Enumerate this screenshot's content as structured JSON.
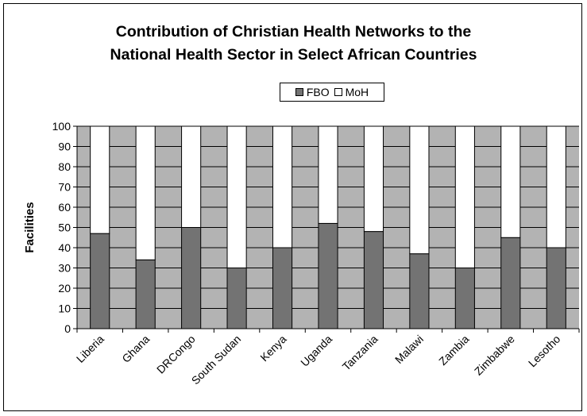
{
  "colors": {
    "plot_background": "#b3b3b3",
    "fbo": "#737373",
    "moh": "#ffffff",
    "axis": "#000000"
  },
  "chart_data": {
    "type": "bar",
    "stacked": true,
    "title": "Contribution of Christian Health Networks to the\nNational Health Sector in Select African Countries",
    "xlabel": "",
    "ylabel": "Facilities",
    "ylim": [
      0,
      100
    ],
    "yticks": [
      0,
      10,
      20,
      30,
      40,
      50,
      60,
      70,
      80,
      90,
      100
    ],
    "grid": true,
    "legend_position": "top-center",
    "categories": [
      "Liberia",
      "Ghana",
      "DRCongo",
      "South Sudan",
      "Kenya",
      "Uganda",
      "Tanzania",
      "Malawi",
      "Zambia",
      "Zimbabwe",
      "Lesotho"
    ],
    "series": [
      {
        "name": "FBO",
        "color": "#737373",
        "values": [
          47,
          34,
          50,
          30,
          40,
          52,
          48,
          37,
          30,
          45,
          40
        ]
      },
      {
        "name": "MoH",
        "color": "#ffffff",
        "values": [
          53,
          66,
          50,
          70,
          60,
          48,
          52,
          63,
          70,
          55,
          60
        ]
      }
    ]
  }
}
